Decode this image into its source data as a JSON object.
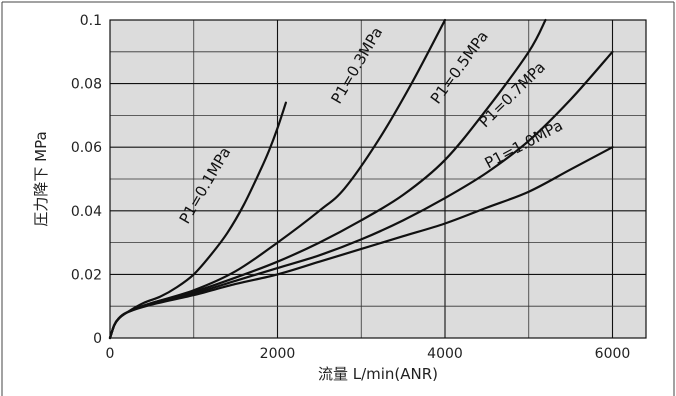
{
  "chart_data": {
    "type": "line",
    "title": "",
    "xlabel": "流量 L/min(ANR)",
    "ylabel": "圧力降下 MPa",
    "xlim": [
      0,
      6400
    ],
    "ylim": [
      0,
      0.1
    ],
    "x_ticks": [
      0,
      2000,
      4000,
      6000
    ],
    "y_ticks": [
      0,
      0.02,
      0.04,
      0.06,
      0.08,
      0.1
    ],
    "x_tick_labels": [
      "0",
      "2000",
      "4000",
      "6000"
    ],
    "y_tick_labels": [
      "0",
      "0.02",
      "0.04",
      "0.06",
      "0.08",
      "0.1"
    ],
    "grid": true,
    "plot_background": "#dcdcdc",
    "line_color": "#111111",
    "series": [
      {
        "name": "P1=0.1MPa",
        "x": [
          0,
          50,
          100,
          200,
          400,
          600,
          800,
          1000,
          1200,
          1400,
          1600,
          1800,
          1900,
          2000,
          2100
        ],
        "y": [
          0,
          0.004,
          0.006,
          0.008,
          0.011,
          0.013,
          0.016,
          0.02,
          0.026,
          0.033,
          0.042,
          0.053,
          0.059,
          0.066,
          0.074
        ]
      },
      {
        "name": "P1=0.3MPa",
        "x": [
          0,
          50,
          100,
          200,
          500,
          1000,
          1500,
          2000,
          2500,
          2800,
          3200,
          3600,
          4000
        ],
        "y": [
          0,
          0.004,
          0.006,
          0.008,
          0.011,
          0.015,
          0.021,
          0.03,
          0.04,
          0.047,
          0.062,
          0.08,
          0.1
        ]
      },
      {
        "name": "P1=0.5MPa",
        "x": [
          0,
          50,
          100,
          200,
          500,
          1000,
          1500,
          2000,
          2500,
          3000,
          3500,
          4000,
          4500,
          5000,
          5200
        ],
        "y": [
          0,
          0.004,
          0.006,
          0.008,
          0.011,
          0.0145,
          0.019,
          0.024,
          0.03,
          0.037,
          0.045,
          0.056,
          0.072,
          0.09,
          0.1
        ]
      },
      {
        "name": "P1=0.7MPa",
        "x": [
          0,
          50,
          100,
          200,
          500,
          1000,
          1500,
          2000,
          2500,
          3000,
          3500,
          4000,
          4500,
          5000,
          5500,
          6000
        ],
        "y": [
          0,
          0.004,
          0.006,
          0.008,
          0.011,
          0.014,
          0.018,
          0.022,
          0.026,
          0.031,
          0.037,
          0.044,
          0.052,
          0.062,
          0.075,
          0.09
        ]
      },
      {
        "name": "P1=1.0MPa",
        "x": [
          0,
          50,
          100,
          200,
          500,
          1000,
          1500,
          2000,
          2500,
          3000,
          3500,
          4000,
          4500,
          5000,
          5500,
          6000
        ],
        "y": [
          0,
          0.004,
          0.006,
          0.008,
          0.0105,
          0.0135,
          0.017,
          0.02,
          0.024,
          0.028,
          0.032,
          0.036,
          0.041,
          0.046,
          0.053,
          0.06
        ]
      }
    ],
    "curve_labels": [
      {
        "text": "P1=0.1MPa",
        "series": 0
      },
      {
        "text": "P1=0.3MPa",
        "series": 1
      },
      {
        "text": "P1=0.5MPa",
        "series": 2
      },
      {
        "text": "P1=0.7MPa",
        "series": 3
      },
      {
        "text": "P1=1.0MPa",
        "series": 4
      }
    ]
  }
}
